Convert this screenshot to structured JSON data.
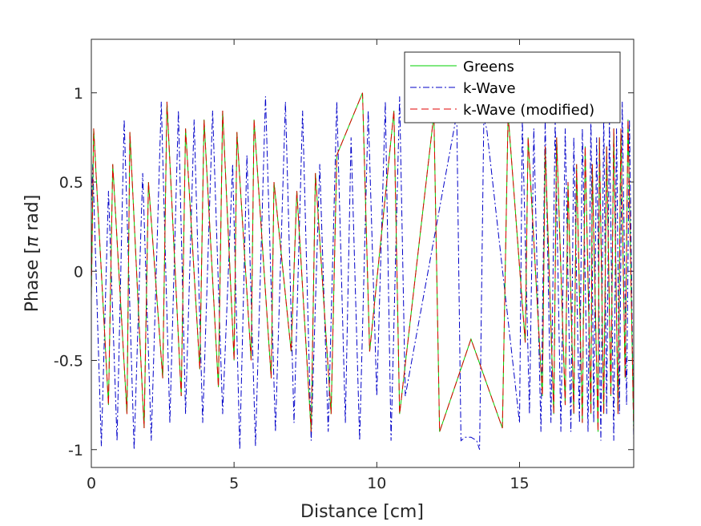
{
  "chart_data": {
    "type": "line",
    "title": "",
    "xlabel": "Distance [cm]",
    "ylabel_prefix": "Phase [",
    "ylabel_symbol": "π",
    "ylabel_suffix": " rad]",
    "xlim": [
      0,
      19
    ],
    "ylim": [
      -1.1,
      1.3
    ],
    "xticks": [
      0,
      5,
      10,
      15
    ],
    "xtick_labels": [
      "0",
      "5",
      "10",
      "15"
    ],
    "yticks": [
      -1,
      -0.5,
      0,
      0.5,
      1
    ],
    "ytick_labels": [
      "-1",
      "-0.5",
      "0",
      "0.5",
      "1"
    ],
    "legend_position": "top-right",
    "series": [
      {
        "name": "Greens",
        "color": "#00d000",
        "style": "solid",
        "x": [
          0.0,
          0.08,
          0.6,
          0.75,
          1.25,
          1.35,
          1.85,
          2.0,
          2.5,
          2.65,
          3.15,
          3.3,
          3.8,
          3.95,
          4.45,
          4.6,
          5.0,
          5.1,
          5.6,
          5.7,
          6.3,
          6.4,
          7.0,
          7.2,
          7.7,
          7.85,
          8.4,
          8.6,
          9.5,
          9.75,
          10.6,
          10.8,
          12.0,
          12.2,
          13.3,
          14.4,
          14.6,
          15.2,
          15.3,
          15.8,
          15.9,
          16.2,
          16.3,
          16.6,
          16.7,
          16.9,
          17.0,
          17.2,
          17.3,
          17.5,
          17.55,
          17.75,
          17.8,
          17.95,
          18.05,
          18.2,
          18.3,
          18.45,
          18.55,
          18.7,
          18.8,
          19.0
        ],
        "y": [
          -0.15,
          0.8,
          -0.75,
          0.6,
          -0.8,
          0.78,
          -0.88,
          0.5,
          -0.6,
          0.95,
          -0.7,
          0.8,
          -0.55,
          0.85,
          -0.65,
          0.9,
          -0.5,
          0.78,
          -0.5,
          0.85,
          -0.6,
          0.5,
          -0.45,
          0.45,
          -0.9,
          0.55,
          -0.8,
          0.65,
          1.0,
          -0.45,
          0.9,
          -0.8,
          0.88,
          -0.9,
          -0.38,
          -0.88,
          0.88,
          -0.4,
          0.75,
          -0.7,
          0.7,
          -0.8,
          0.75,
          -0.75,
          0.5,
          -0.8,
          0.6,
          -0.85,
          0.7,
          -0.8,
          0.6,
          -0.9,
          0.75,
          -0.8,
          0.7,
          -0.7,
          0.8,
          -0.8,
          0.8,
          -0.6,
          0.85,
          -0.9
        ]
      },
      {
        "name": "k-Wave",
        "color": "#0000c8",
        "style": "dashdot",
        "x": [
          0.0,
          0.05,
          0.35,
          0.6,
          0.9,
          1.15,
          1.5,
          1.8,
          2.1,
          2.45,
          2.75,
          3.05,
          3.3,
          3.6,
          3.9,
          4.25,
          4.6,
          4.95,
          5.2,
          5.45,
          5.75,
          6.1,
          6.45,
          6.8,
          7.1,
          7.4,
          7.7,
          8.0,
          8.3,
          8.6,
          8.9,
          9.1,
          9.4,
          9.7,
          10.0,
          10.3,
          10.5,
          10.8,
          11.0,
          12.8,
          12.95,
          13.1,
          13.3,
          13.5,
          13.6,
          13.75,
          13.85,
          15.0,
          15.1,
          15.35,
          15.5,
          15.75,
          15.9,
          16.1,
          16.25,
          16.45,
          16.6,
          16.8,
          16.9,
          17.1,
          17.2,
          17.4,
          17.5,
          17.6,
          17.7,
          17.85,
          17.95,
          18.05,
          18.15,
          18.3,
          18.4,
          18.5,
          18.6,
          18.75,
          18.85,
          19.0
        ],
        "y": [
          0.35,
          0.6,
          -0.98,
          0.45,
          -0.95,
          0.85,
          -1.0,
          0.55,
          -0.95,
          0.95,
          -0.85,
          0.9,
          -0.8,
          0.85,
          -0.85,
          0.9,
          -0.8,
          0.6,
          -1.0,
          0.65,
          -0.98,
          0.98,
          -0.9,
          0.95,
          -0.85,
          0.9,
          -0.95,
          0.6,
          -0.9,
          0.95,
          -0.85,
          0.75,
          -0.95,
          0.9,
          -0.7,
          0.95,
          -0.95,
          0.98,
          -0.7,
          0.88,
          -0.95,
          -0.93,
          -0.93,
          -0.95,
          -1.0,
          0.85,
          0.8,
          -0.85,
          0.85,
          -0.8,
          0.8,
          -0.9,
          0.85,
          -0.85,
          0.85,
          -0.9,
          0.8,
          -0.9,
          0.75,
          -0.85,
          0.8,
          -0.9,
          0.9,
          -0.85,
          0.75,
          -0.95,
          0.9,
          -0.8,
          0.85,
          -0.95,
          0.8,
          -0.8,
          0.95,
          -0.75,
          0.85,
          -0.95
        ]
      },
      {
        "name": "k-Wave (modified)",
        "color": "#e00000",
        "style": "dashed",
        "x": [
          0.0,
          0.08,
          0.6,
          0.75,
          1.25,
          1.35,
          1.85,
          2.0,
          2.5,
          2.65,
          3.15,
          3.3,
          3.8,
          3.95,
          4.45,
          4.6,
          5.0,
          5.1,
          5.6,
          5.7,
          6.3,
          6.4,
          7.0,
          7.2,
          7.7,
          7.85,
          8.4,
          8.6,
          9.5,
          9.75,
          10.6,
          10.8,
          12.0,
          12.2,
          13.3,
          14.4,
          14.6,
          15.2,
          15.3,
          15.8,
          15.9,
          16.2,
          16.3,
          16.6,
          16.7,
          16.9,
          17.0,
          17.2,
          17.3,
          17.5,
          17.55,
          17.75,
          17.8,
          17.95,
          18.05,
          18.2,
          18.3,
          18.45,
          18.55,
          18.7,
          18.8,
          19.0
        ],
        "y": [
          -0.15,
          0.8,
          -0.75,
          0.6,
          -0.8,
          0.78,
          -0.88,
          0.5,
          -0.6,
          0.95,
          -0.7,
          0.8,
          -0.55,
          0.85,
          -0.65,
          0.9,
          -0.5,
          0.78,
          -0.5,
          0.85,
          -0.6,
          0.5,
          -0.45,
          0.45,
          -0.9,
          0.55,
          -0.8,
          0.65,
          1.0,
          -0.45,
          0.9,
          -0.8,
          0.88,
          -0.9,
          -0.38,
          -0.88,
          0.88,
          -0.4,
          0.75,
          -0.7,
          0.7,
          -0.8,
          0.75,
          -0.75,
          0.5,
          -0.8,
          0.6,
          -0.85,
          0.7,
          -0.8,
          0.6,
          -0.9,
          0.75,
          -0.8,
          0.7,
          -0.7,
          0.8,
          -0.8,
          0.8,
          -0.6,
          0.85,
          -0.9
        ]
      }
    ]
  }
}
